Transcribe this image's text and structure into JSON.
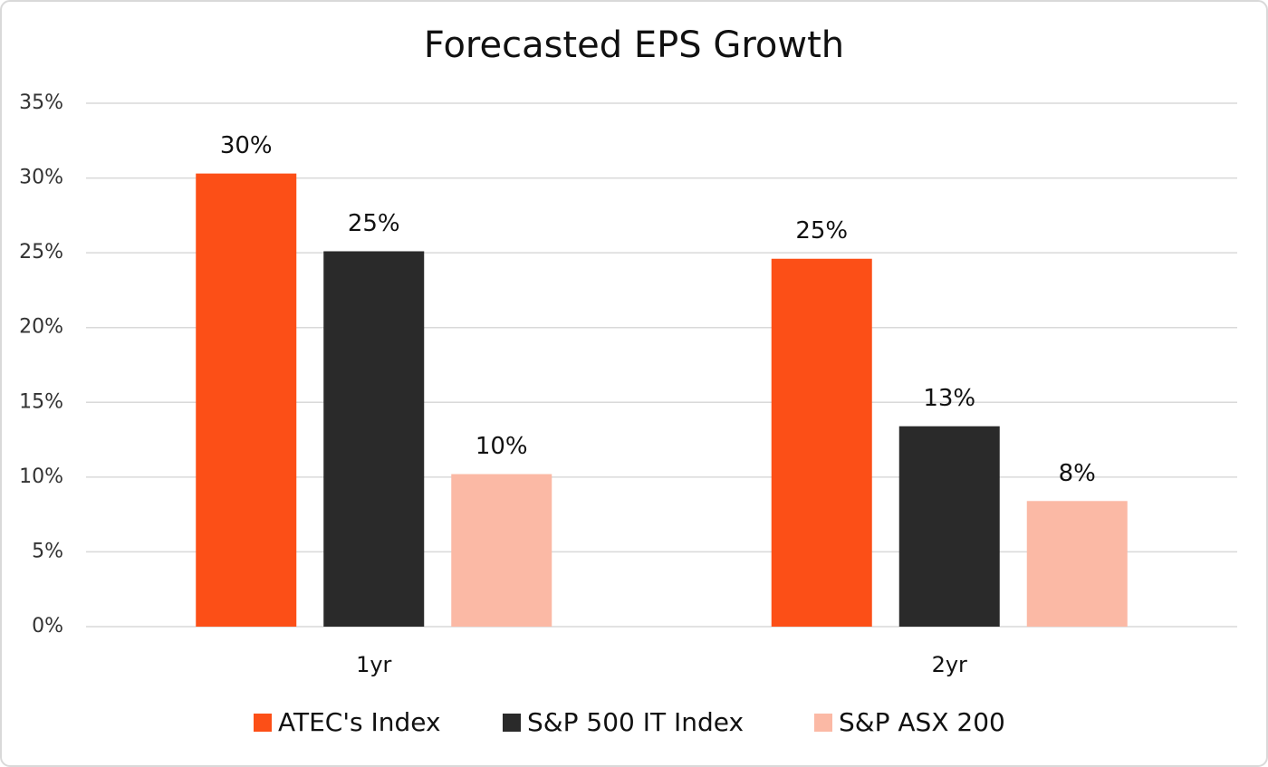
{
  "chart_data": {
    "type": "bar",
    "title": "Forecasted EPS Growth",
    "categories": [
      "1yr",
      "2yr"
    ],
    "series": [
      {
        "name": "ATEC's Index",
        "color": "#fc4f17",
        "values": [
          30.3,
          24.6
        ],
        "value_labels": [
          "30%",
          "25%"
        ]
      },
      {
        "name": "S&P 500 IT Index",
        "color": "#2a2a2a",
        "values": [
          25.1,
          13.4
        ],
        "value_labels": [
          "25%",
          "13%"
        ]
      },
      {
        "name": "S&P ASX 200",
        "color": "#fbb9a5",
        "values": [
          10.2,
          8.4
        ],
        "value_labels": [
          "10%",
          "8%"
        ]
      }
    ],
    "ylim": [
      0,
      35
    ],
    "yticks": [
      {
        "value": 0,
        "label": "0%"
      },
      {
        "value": 5,
        "label": "5%"
      },
      {
        "value": 10,
        "label": "10%"
      },
      {
        "value": 15,
        "label": "15%"
      },
      {
        "value": 20,
        "label": "20%"
      },
      {
        "value": 25,
        "label": "25%"
      },
      {
        "value": 30,
        "label": "30%"
      },
      {
        "value": 35,
        "label": "35%"
      }
    ],
    "grid": true,
    "legend": "bottom"
  }
}
